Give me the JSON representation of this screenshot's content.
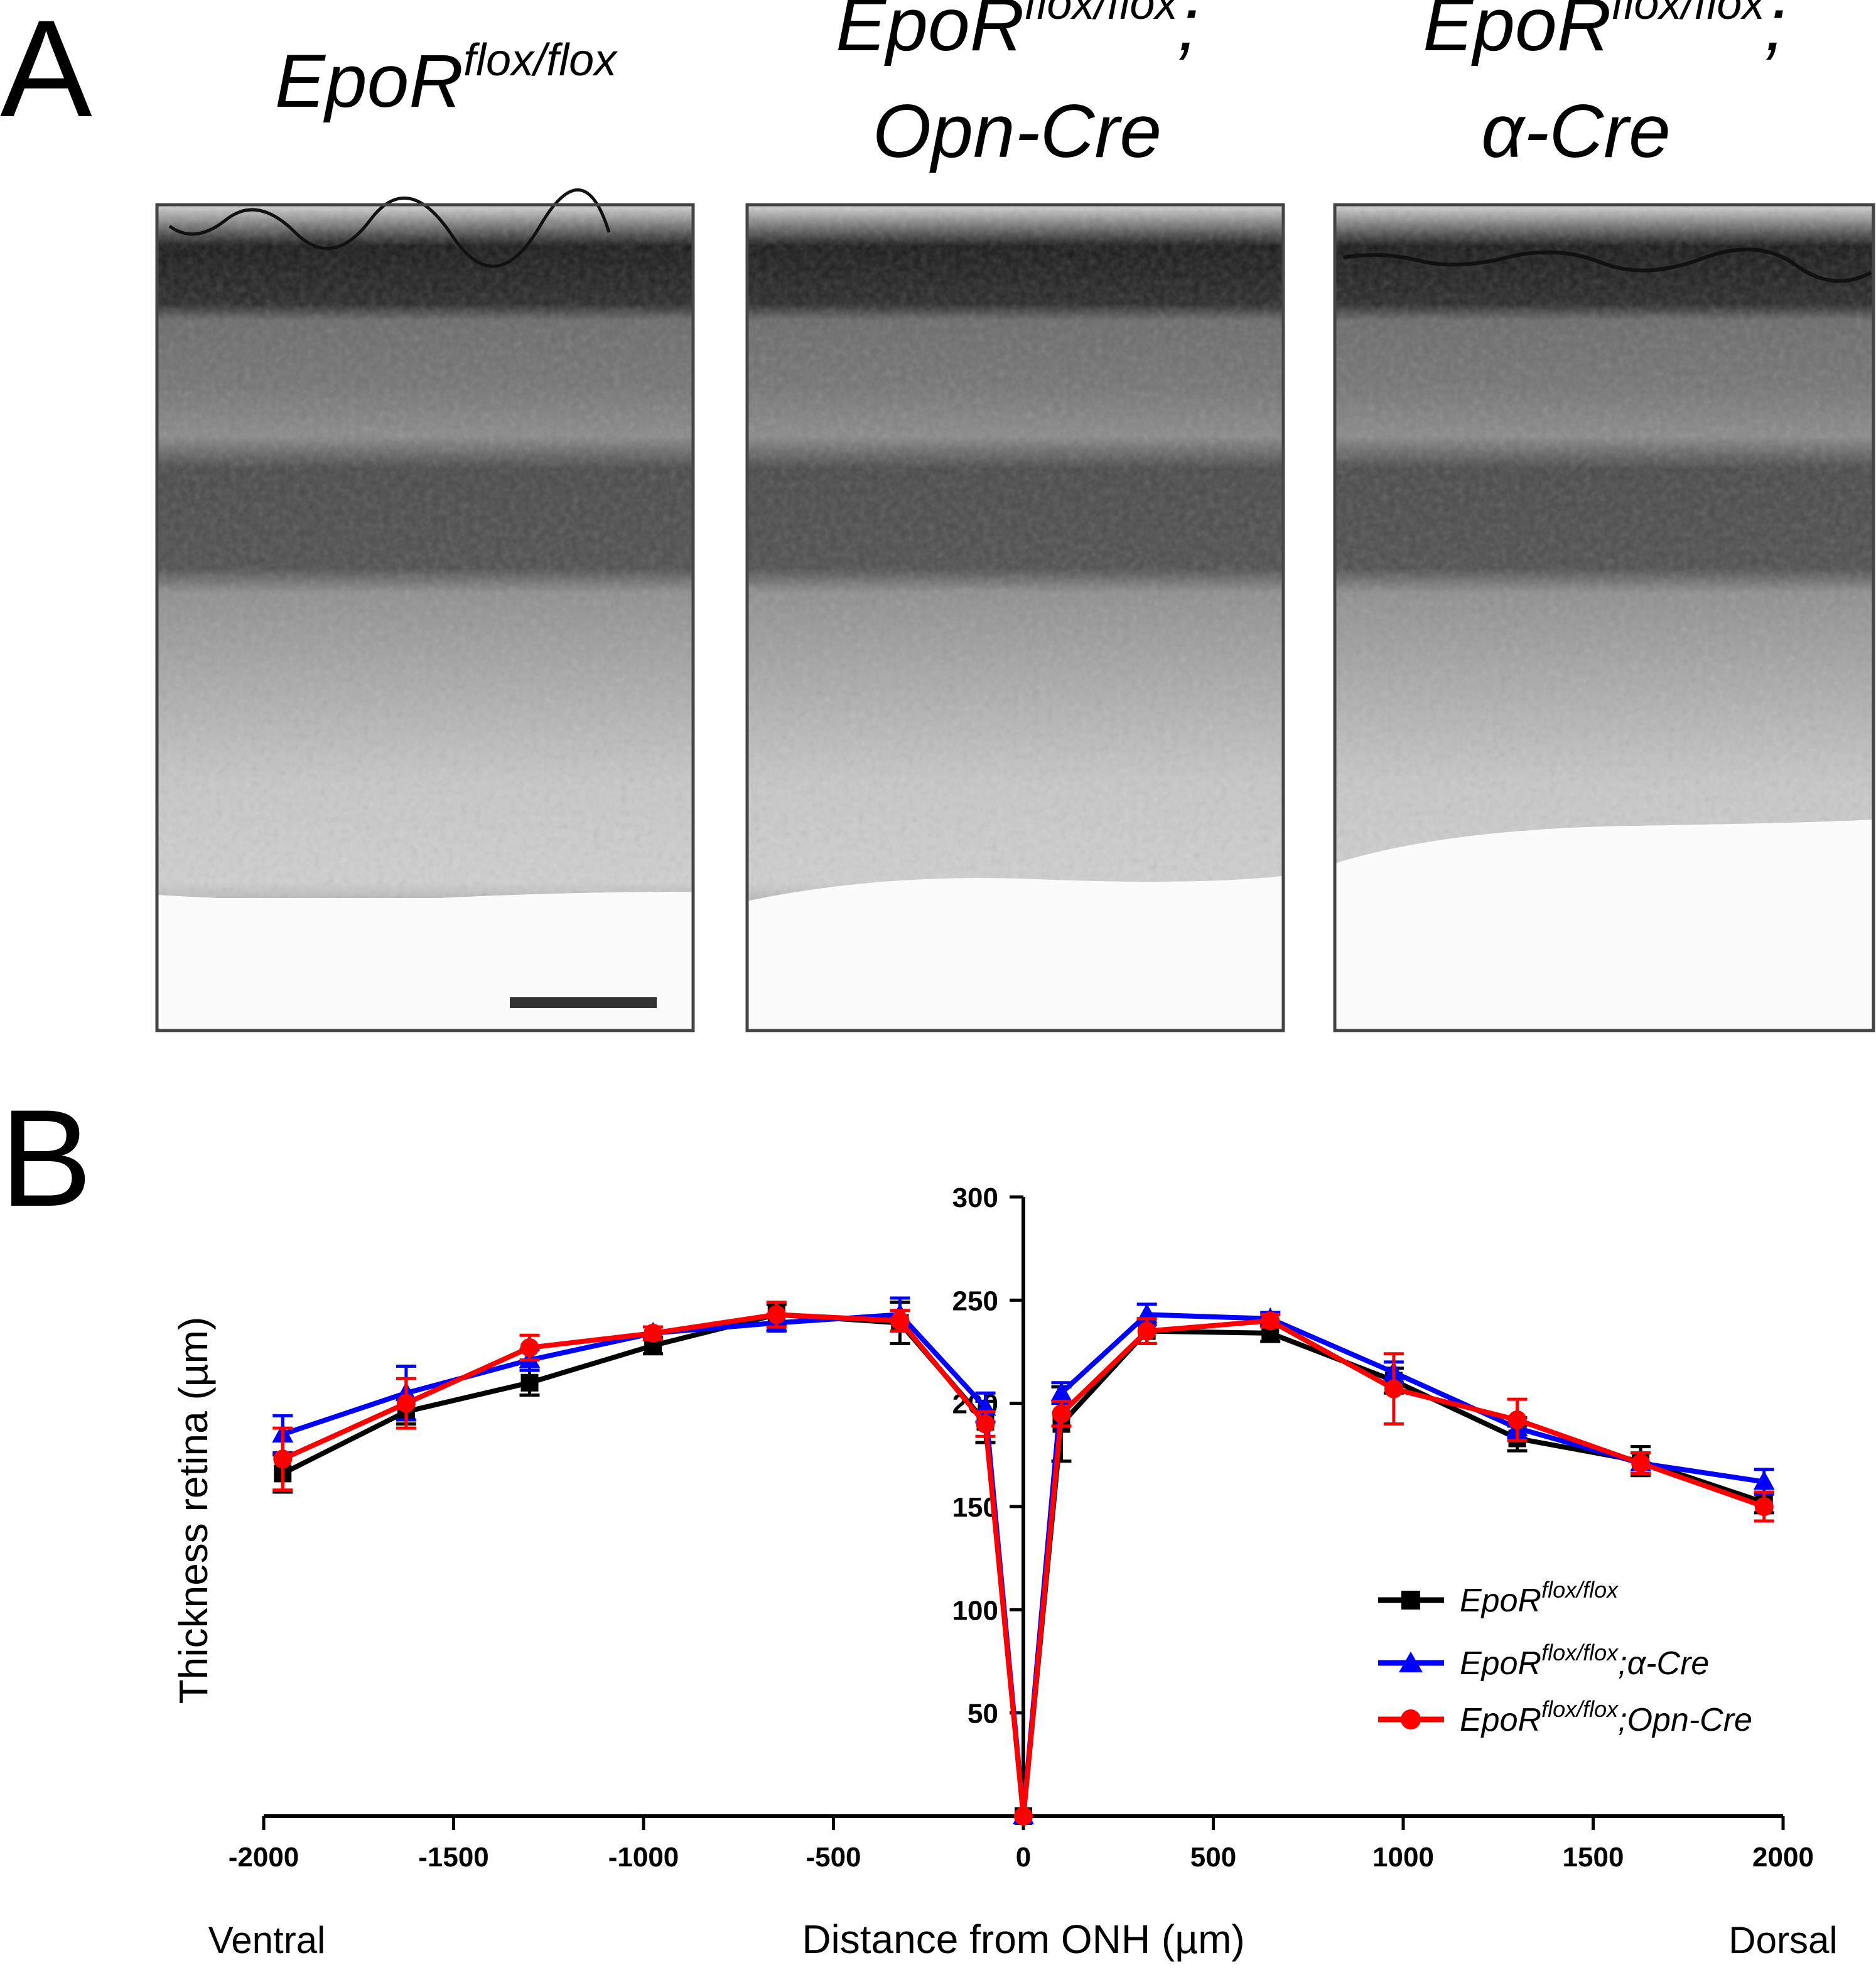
{
  "panel_a": {
    "letter": "A",
    "panels": [
      {
        "title_main": "EpoR",
        "title_sup": "flox/flox",
        "title_tail": "",
        "title_line2": ""
      },
      {
        "title_main": "EpoR",
        "title_sup": "flox/flox",
        "title_tail": ";",
        "title_line2": "Opn-Cre"
      },
      {
        "title_main": "EpoR",
        "title_sup": "flox/flox",
        "title_tail": ";",
        "title_line2": "α-Cre"
      }
    ]
  },
  "panel_b": {
    "letter": "B",
    "side_left": "Ventral",
    "side_right": "Dorsal"
  },
  "chart_data": {
    "type": "line",
    "xlabel": "Distance from ONH (µm)",
    "ylabel": "Thickness retina (µm)",
    "xlim": [
      -2000,
      2000
    ],
    "ylim": [
      0,
      300
    ],
    "xticks": [
      -2000,
      -1500,
      -1000,
      -500,
      0,
      500,
      1000,
      1500,
      2000
    ],
    "yticks": [
      50,
      100,
      150,
      200,
      250,
      300
    ],
    "legend_position": "bottom-right",
    "x": [
      -1950,
      -1625,
      -1300,
      -975,
      -650,
      -325,
      -100,
      0,
      100,
      325,
      650,
      975,
      1300,
      1625,
      1950
    ],
    "series": [
      {
        "name_main": "EpoR",
        "name_sup": "flox/flox",
        "name_tail": "",
        "color": "#000000",
        "marker": "square",
        "values": [
          166,
          196,
          210,
          228,
          243,
          239,
          191,
          0,
          190,
          235,
          234,
          211,
          183,
          172,
          152
        ],
        "errors": [
          9,
          6,
          6,
          4,
          5,
          10,
          10,
          0,
          18,
          6,
          4,
          6,
          6,
          7,
          5
        ]
      },
      {
        "name_main": "EpoR",
        "name_sup": "flox/flox",
        "name_tail": ";α-Cre",
        "color": "#0000ff",
        "marker": "triangle",
        "values": [
          185,
          205,
          221,
          234,
          239,
          243,
          198,
          0,
          205,
          243,
          241,
          215,
          188,
          171,
          162
        ],
        "errors": [
          9,
          13,
          5,
          3,
          4,
          8,
          7,
          0,
          5,
          5,
          3,
          5,
          5,
          5,
          6
        ]
      },
      {
        "name_main": "EpoR",
        "name_sup": "flox/flox",
        "name_tail": ";Opn-Cre",
        "color": "#ff0000",
        "marker": "circle",
        "values": [
          173,
          200,
          227,
          234,
          243,
          240,
          190,
          0,
          195,
          235,
          240,
          207,
          192,
          171,
          150
        ],
        "errors": [
          15,
          12,
          6,
          3,
          6,
          5,
          6,
          0,
          6,
          6,
          3,
          17,
          10,
          5,
          7
        ]
      }
    ]
  },
  "colors": {
    "scale_bar": "#333333",
    "frame": "#444444"
  }
}
